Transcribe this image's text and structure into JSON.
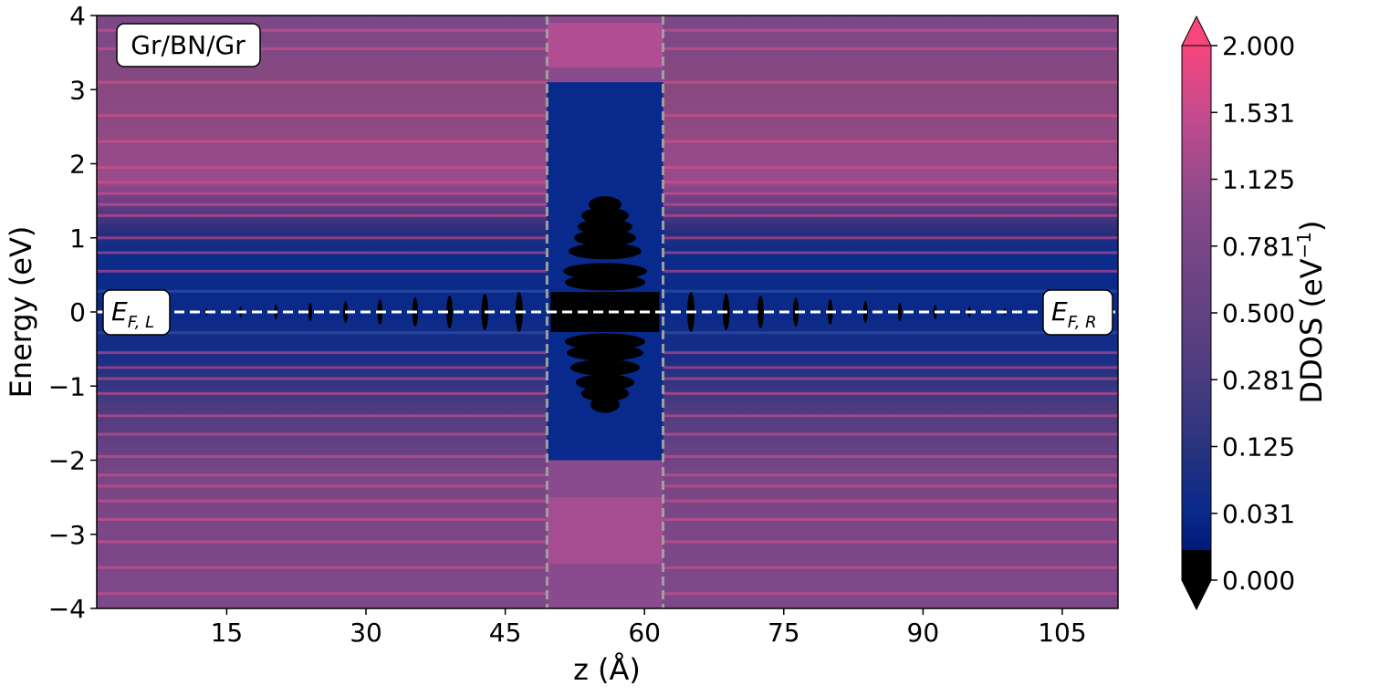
{
  "chart_data": {
    "type": "heatmap",
    "title": "",
    "xlabel": "z (Å)",
    "ylabel": "Energy (eV)",
    "xlim": [
      1,
      111
    ],
    "ylim": [
      -4,
      4
    ],
    "xticks": [
      15,
      30,
      45,
      60,
      75,
      90,
      105
    ],
    "xtick_labels": [
      "15",
      "30",
      "45",
      "60",
      "75",
      "90",
      "105"
    ],
    "yticks": [
      -4,
      -3,
      -2,
      -1,
      0,
      1,
      2,
      3,
      4
    ],
    "ytick_labels": [
      "−4",
      "−3",
      "−2",
      "−1",
      "0",
      "1",
      "2",
      "3",
      "4"
    ],
    "system_label": "Gr/BN/Gr",
    "fermi_level_eV": 0,
    "fermi_labels": {
      "left": "E",
      "left_sub": "F, L",
      "right": "E",
      "right_sub": "F, R"
    },
    "interface_lines_z": [
      49.5,
      62.0
    ],
    "barrier_region_z": [
      49.5,
      62.0
    ],
    "barrier_gap_eV": [
      -2.0,
      3.1
    ],
    "colorbar": {
      "label": "DDOS (eV",
      "label_sup": "−1",
      "label_close": ")",
      "ticks": [
        0.0,
        0.031,
        0.125,
        0.281,
        0.5,
        0.781,
        1.125,
        1.531,
        2.0
      ],
      "tick_labels": [
        "0.000",
        "0.031",
        "0.125",
        "0.281",
        "0.500",
        "0.781",
        "1.125",
        "1.531",
        "2.000"
      ],
      "extend": "both",
      "colors": [
        "#000000",
        "#001a7a",
        "#0a2a8a",
        "#27307a",
        "#4a3a7a",
        "#6b4382",
        "#8a4a8a",
        "#b04c8e",
        "#d44a8e",
        "#f7467c"
      ]
    },
    "grid": false
  }
}
